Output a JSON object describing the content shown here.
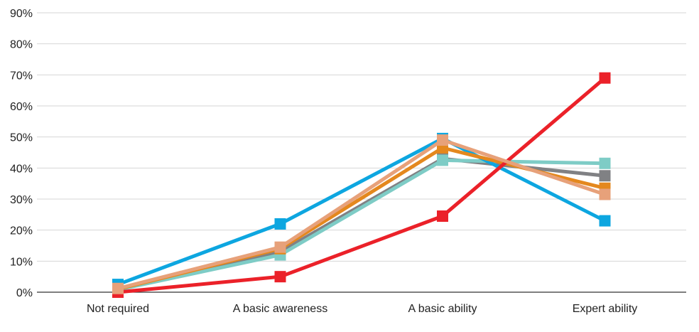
{
  "chart_data": {
    "type": "line",
    "categories": [
      "Not required",
      "A basic awareness",
      "A basic ability",
      "Expert ability"
    ],
    "ylim": [
      0,
      90
    ],
    "y_ticks": [
      0,
      10,
      20,
      30,
      40,
      50,
      60,
      70,
      80,
      90
    ],
    "y_tick_labels": [
      "0%",
      "10%",
      "20%",
      "30%",
      "40%",
      "50%",
      "60%",
      "70%",
      "80%",
      "90%"
    ],
    "grid": true,
    "legend": "none",
    "title": "",
    "xlabel": "",
    "ylabel": "",
    "series": [
      {
        "color": "#808184",
        "values": [
          1,
          13,
          43,
          37.5
        ]
      },
      {
        "color": "#7ECCC6",
        "values": [
          0.8,
          12,
          42.5,
          41.5
        ]
      },
      {
        "color": "#0DA6E0",
        "values": [
          2.5,
          22,
          49.5,
          23
        ]
      },
      {
        "color": "#E4881E",
        "values": [
          1,
          14,
          46.5,
          33.5
        ]
      },
      {
        "color": "#EB2129",
        "values": [
          0,
          5,
          24.5,
          69
        ]
      },
      {
        "color": "#E7A17A",
        "values": [
          1.2,
          14.5,
          49,
          31.5
        ]
      }
    ]
  }
}
